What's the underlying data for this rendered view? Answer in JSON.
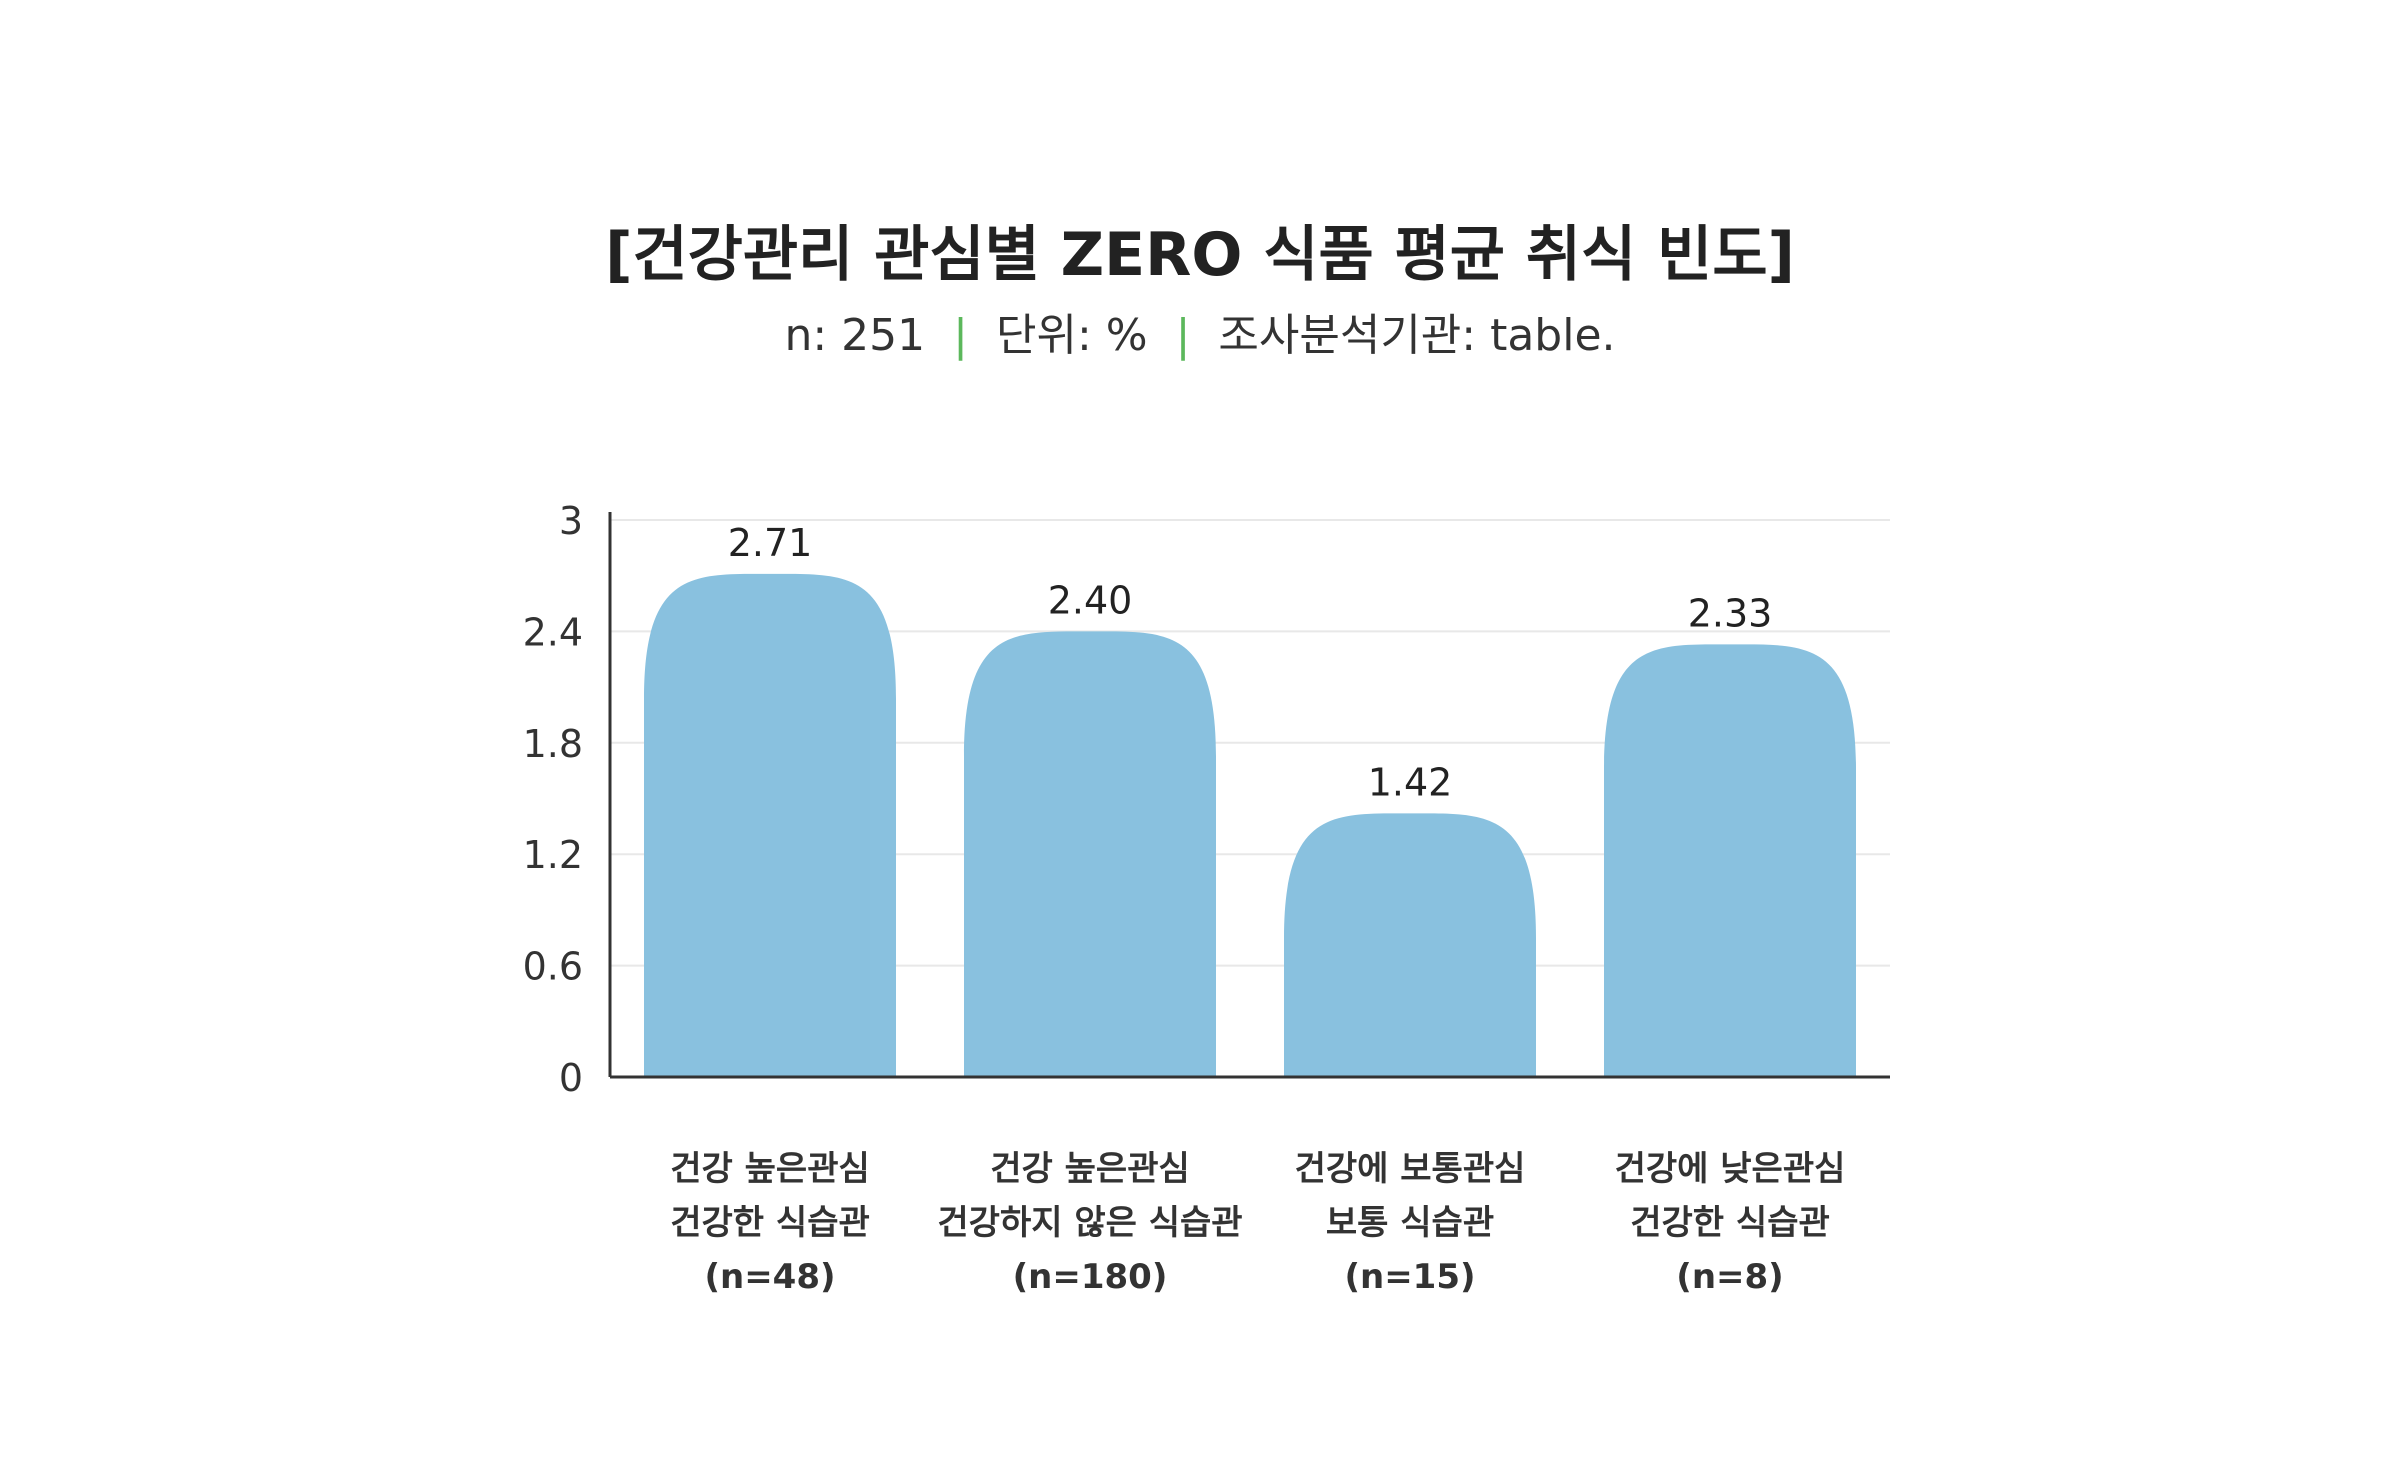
{
  "chart_data": {
    "type": "bar",
    "title": "[건강관리 관심별 ZERO 식품 평균 취식 빈도]",
    "subtitle": {
      "n": "n: 251",
      "unit": "단위: %",
      "source": "조사분석기관: table."
    },
    "categories": [
      [
        "건강 높은관심",
        "건강한 식습관",
        "(n=48)"
      ],
      [
        "건강 높은관심",
        "건강하지 않은 식습관",
        "(n=180)"
      ],
      [
        "건강에 보통관심",
        "보통 식습관",
        "(n=15)"
      ],
      [
        "건강에 낮은관심",
        "건강한 식습관",
        "(n=8)"
      ]
    ],
    "values": [
      2.71,
      2.4,
      1.42,
      2.33
    ],
    "value_labels": [
      "2.71",
      "2.40",
      "1.42",
      "2.33"
    ],
    "yticks": [
      0,
      0.6,
      1.2,
      1.8,
      2.4,
      3
    ],
    "ytick_labels": [
      "0",
      "0.6",
      "1.2",
      "1.8",
      "2.4",
      "3"
    ],
    "ylim": [
      0,
      3
    ],
    "xlabel": "",
    "ylabel": "",
    "grid": true,
    "bar_color": "#89c1df",
    "separator_color": "#5cb85c"
  }
}
